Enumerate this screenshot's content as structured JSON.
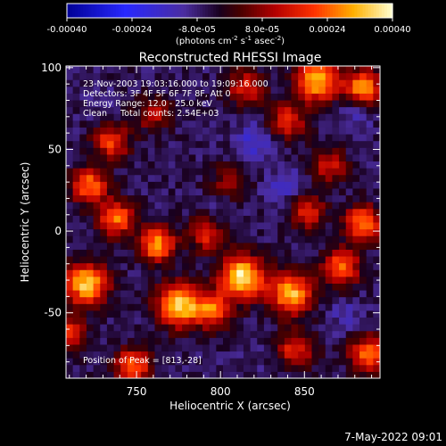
{
  "colorbar": {
    "ticks": [
      "-0.00040",
      "-0.00024",
      "-8.0e-05",
      "8.0e-05",
      "0.00024",
      "0.00040"
    ],
    "tick_values": [
      -0.0004,
      -0.00024,
      -8e-05,
      8e-05,
      0.00024,
      0.0004
    ],
    "range": [
      -0.0004,
      0.0004
    ],
    "unit_prefix": "(photons cm",
    "unit_exp1": "-2",
    "unit_mid1": " s",
    "unit_exp2": "-1",
    "unit_mid2": " asec",
    "unit_exp3": "-2",
    "unit_suffix": ")"
  },
  "chart_data": {
    "type": "heatmap",
    "title": "Reconstructed RHESSI Image",
    "xlabel": "Heliocentric X (arcsec)",
    "ylabel": "Heliocentric Y (arcsec)",
    "xlim": [
      708,
      895
    ],
    "ylim": [
      -90,
      101
    ],
    "xticks": [
      750,
      800,
      850
    ],
    "yticks": [
      -50,
      0,
      50,
      100
    ],
    "annotations": [
      "23-Nov-2003 19:03:16.000 to 19:09:16.000",
      "Detectors: 3F 4F 5F 6F 7F 8F, Att 0",
      "Energy Range: 12.0 - 25.0 keV",
      "Clean     Total counts: 2.54E+03"
    ],
    "peak_label": "Position of Peak = [813,-28]",
    "peak_position": [
      813,
      -28
    ],
    "sources": [
      {
        "x": 813,
        "y": -28,
        "value": 0.0004
      },
      {
        "x": 775,
        "y": -45,
        "value": 0.00036
      },
      {
        "x": 720,
        "y": -32,
        "value": 0.00034
      },
      {
        "x": 762,
        "y": -8,
        "value": 0.0003
      },
      {
        "x": 738,
        "y": 8,
        "value": 0.00026
      },
      {
        "x": 842,
        "y": -38,
        "value": 0.00032
      },
      {
        "x": 858,
        "y": 92,
        "value": 0.00032
      },
      {
        "x": 885,
        "y": 88,
        "value": 0.0003
      },
      {
        "x": 722,
        "y": 28,
        "value": 0.00026
      },
      {
        "x": 885,
        "y": 5,
        "value": 0.00028
      },
      {
        "x": 795,
        "y": -48,
        "value": 0.00024
      },
      {
        "x": 872,
        "y": -22,
        "value": 0.00026
      },
      {
        "x": 748,
        "y": -82,
        "value": 0.00024
      },
      {
        "x": 888,
        "y": -75,
        "value": 0.00026
      },
      {
        "x": 735,
        "y": 55,
        "value": 0.0002
      },
      {
        "x": 840,
        "y": 68,
        "value": 0.00018
      },
      {
        "x": 815,
        "y": 88,
        "value": 0.00016
      },
      {
        "x": 792,
        "y": -2,
        "value": 0.00016
      },
      {
        "x": 845,
        "y": -72,
        "value": 0.00018
      },
      {
        "x": 708,
        "y": -62,
        "value": 0.0002
      },
      {
        "x": 865,
        "y": 40,
        "value": 0.00014
      },
      {
        "x": 852,
        "y": 12,
        "value": 0.00016
      },
      {
        "x": 805,
        "y": 30,
        "value": 8e-05
      },
      {
        "x": 760,
        "y": 72,
        "value": 0.00012
      },
      {
        "x": 820,
        "y": 55,
        "value": -0.00018
      },
      {
        "x": 838,
        "y": 28,
        "value": -0.00016
      },
      {
        "x": 880,
        "y": 72,
        "value": -0.00014
      },
      {
        "x": 875,
        "y": -52,
        "value": -0.00012
      },
      {
        "x": 800,
        "y": 12,
        "value": -0.0001
      },
      {
        "x": 730,
        "y": 78,
        "value": -0.0001
      },
      {
        "x": 818,
        "y": -78,
        "value": -8e-05
      }
    ]
  },
  "footer": {
    "timestamp": "7-May-2022 09:01"
  }
}
